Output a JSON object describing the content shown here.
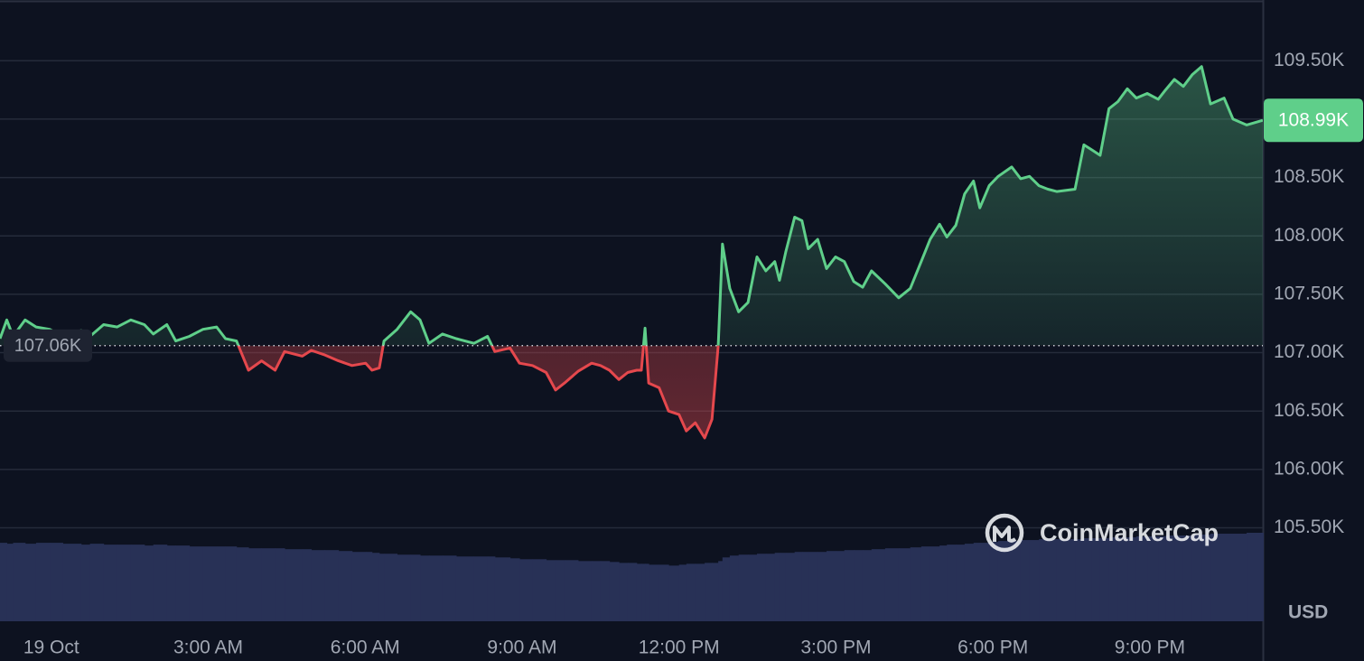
{
  "chart_data": {
    "type": "line",
    "currency": "USD",
    "watermark": "CoinMarketCap",
    "xlim": [
      -0.98,
      23.16
    ],
    "xticks": [
      {
        "value": 0,
        "label": "19 Oct"
      },
      {
        "value": 3,
        "label": "3:00 AM"
      },
      {
        "value": 6,
        "label": "6:00 AM"
      },
      {
        "value": 9,
        "label": "9:00 AM"
      },
      {
        "value": 12,
        "label": "12:00 PM"
      },
      {
        "value": 15,
        "label": "3:00 PM"
      },
      {
        "value": 18,
        "label": "6:00 PM"
      },
      {
        "value": 21,
        "label": "9:00 PM"
      }
    ],
    "ylim": [
      104.7,
      110.02
    ],
    "yticks": [
      {
        "value": 105.5,
        "label": "105.50K"
      },
      {
        "value": 106,
        "label": "106.00K"
      },
      {
        "value": 106.5,
        "label": "106.50K"
      },
      {
        "value": 107,
        "label": "107.00K"
      },
      {
        "value": 107.5,
        "label": "107.50K"
      },
      {
        "value": 108,
        "label": "108.00K"
      },
      {
        "value": 108.5,
        "label": "108.50K"
      },
      {
        "value": 109,
        "label": "109.00K"
      },
      {
        "value": 109.5,
        "label": "109.50K"
      }
    ],
    "grid": true,
    "baseline": {
      "value": 107.06,
      "label": "107.06K"
    },
    "current_price": {
      "value": 108.99,
      "label": "108.99K"
    },
    "x": [
      -0.98,
      -0.85,
      -0.73,
      -0.5,
      -0.29,
      -0.03,
      0.22,
      0.57,
      0.74,
      1.0,
      1.26,
      1.52,
      1.78,
      1.95,
      2.21,
      2.38,
      2.64,
      2.9,
      3.16,
      3.33,
      3.54,
      3.77,
      4.02,
      4.28,
      4.46,
      4.8,
      4.97,
      5.23,
      5.49,
      5.75,
      6.01,
      6.13,
      6.27,
      6.36,
      6.61,
      6.87,
      7.05,
      7.22,
      7.48,
      7.74,
      8.08,
      8.34,
      8.48,
      8.77,
      8.95,
      9.2,
      9.46,
      9.64,
      9.81,
      10.07,
      10.33,
      10.5,
      10.67,
      10.85,
      11.02,
      11.19,
      11.28,
      11.35,
      11.42,
      11.62,
      11.8,
      12.0,
      12.14,
      12.31,
      12.49,
      12.63,
      12.75,
      12.83,
      12.97,
      13.14,
      13.32,
      13.49,
      13.66,
      13.83,
      13.92,
      14.04,
      14.21,
      14.35,
      14.47,
      14.65,
      14.82,
      14.99,
      15.16,
      15.34,
      15.51,
      15.68,
      15.94,
      16.2,
      16.42,
      16.63,
      16.8,
      16.98,
      17.12,
      17.29,
      17.46,
      17.63,
      17.75,
      17.93,
      18.1,
      18.36,
      18.53,
      18.7,
      18.88,
      19.05,
      19.22,
      19.57,
      19.74,
      19.88,
      20.05,
      20.22,
      20.39,
      20.57,
      20.74,
      20.95,
      21.16,
      21.3,
      21.47,
      21.64,
      21.81,
      21.99,
      22.16,
      22.42,
      22.59,
      22.85,
      23.16
    ],
    "series": [
      {
        "color": "#5fcf8a",
        "below_color": "#e5484d",
        "values": [
          107.12,
          107.28,
          107.14,
          107.28,
          107.22,
          107.2,
          107.14,
          107.19,
          107.14,
          107.24,
          107.22,
          107.28,
          107.24,
          107.16,
          107.24,
          107.1,
          107.14,
          107.2,
          107.22,
          107.12,
          107.1,
          106.85,
          106.93,
          106.85,
          107.01,
          106.97,
          107.02,
          106.98,
          106.93,
          106.89,
          106.91,
          106.85,
          106.87,
          107.1,
          107.2,
          107.35,
          107.28,
          107.08,
          107.16,
          107.12,
          107.08,
          107.14,
          107.01,
          107.04,
          106.91,
          106.89,
          106.83,
          106.68,
          106.74,
          106.84,
          106.91,
          106.89,
          106.85,
          106.77,
          106.83,
          106.85,
          106.85,
          107.21,
          106.74,
          106.7,
          106.5,
          106.47,
          106.33,
          106.4,
          106.27,
          106.43,
          107.06,
          107.93,
          107.55,
          107.35,
          107.43,
          107.82,
          107.7,
          107.78,
          107.62,
          107.86,
          108.16,
          108.13,
          107.89,
          107.97,
          107.72,
          107.82,
          107.78,
          107.61,
          107.56,
          107.7,
          107.59,
          107.47,
          107.55,
          107.78,
          107.97,
          108.1,
          107.99,
          108.09,
          108.36,
          108.47,
          108.24,
          108.43,
          108.51,
          108.59,
          108.49,
          108.51,
          108.43,
          108.4,
          108.38,
          108.4,
          108.78,
          108.74,
          108.69,
          109.09,
          109.15,
          109.26,
          109.18,
          109.22,
          109.17,
          109.25,
          109.34,
          109.28,
          109.38,
          109.45,
          109.13,
          109.18,
          109.0,
          108.95,
          108.99
        ]
      },
      {
        "type": "volume",
        "color": "#283156",
        "values": [
          86,
          85,
          86,
          85,
          86,
          86,
          85,
          84,
          85,
          84,
          84,
          84,
          83,
          84,
          83,
          83,
          82,
          82,
          82,
          82,
          81,
          80,
          80,
          80,
          79,
          79,
          78,
          78,
          77,
          76,
          76,
          75,
          74,
          74,
          73,
          73,
          72,
          72,
          72,
          71,
          71,
          71,
          70,
          69,
          68,
          68,
          67,
          67,
          67,
          66,
          66,
          66,
          65,
          64,
          64,
          63,
          63,
          63,
          62,
          62,
          61,
          62,
          63,
          63,
          64,
          64,
          66,
          70,
          72,
          73,
          73,
          74,
          74,
          75,
          75,
          75,
          76,
          76,
          76,
          76,
          77,
          77,
          78,
          78,
          78,
          79,
          80,
          80,
          81,
          82,
          82,
          83,
          84,
          84,
          85,
          86,
          86,
          87,
          88,
          88,
          89,
          89,
          90,
          90,
          90,
          90,
          91,
          91,
          91,
          92,
          92,
          92,
          93,
          93,
          93,
          94,
          94,
          94,
          95,
          95,
          96,
          96,
          96,
          97,
          97
        ]
      }
    ]
  }
}
